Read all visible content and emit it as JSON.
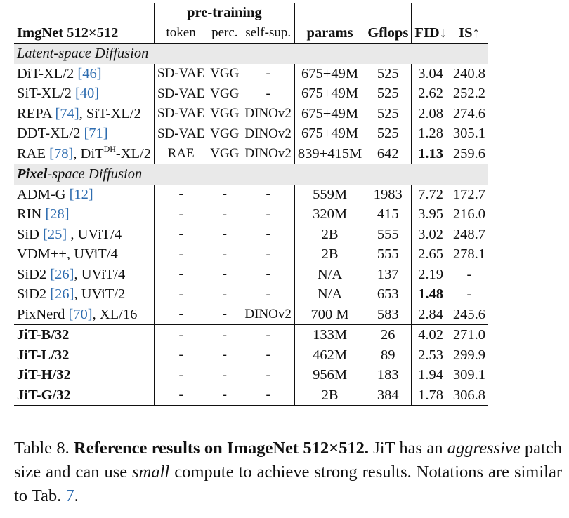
{
  "header": {
    "group": "pre-training",
    "col_dataset": "ImgNet 512×512",
    "col_token": "token",
    "col_perc": "perc.",
    "col_selfsup": "self-sup.",
    "col_params": "params",
    "col_gflops": "Gflops",
    "col_fid": "FID↓",
    "col_is": "IS↑"
  },
  "sections": {
    "latent": "Latent-space Diffusion",
    "pixel_bold": "Pixel",
    "pixel_rest": "-space Diffusion"
  },
  "latent_rows": [
    {
      "name": "DiT-XL/2 ",
      "ref": "[46]",
      "token": "SD-VAE",
      "perc": "VGG",
      "self": "-",
      "params": "675+49M",
      "gflops": "525",
      "fid": "3.04",
      "is": "240.8"
    },
    {
      "name": "SiT-XL/2 ",
      "ref": "[40]",
      "token": "SD-VAE",
      "perc": "VGG",
      "self": "-",
      "params": "675+49M",
      "gflops": "525",
      "fid": "2.62",
      "is": "252.2"
    },
    {
      "name": "REPA ",
      "ref": "[74]",
      "name2": ", SiT-XL/2",
      "token": "SD-VAE",
      "perc": "VGG",
      "self": "DINOv2",
      "params": "675+49M",
      "gflops": "525",
      "fid": "2.08",
      "is": "274.6"
    },
    {
      "name": "DDT-XL/2 ",
      "ref": "[71]",
      "token": "SD-VAE",
      "perc": "VGG",
      "self": "DINOv2",
      "params": "675+49M",
      "gflops": "525",
      "fid": "1.28",
      "is": "305.1"
    },
    {
      "name": "RAE ",
      "ref": "[78]",
      "name2": ", DiT",
      "sup": "DH",
      "name3": "-XL/2",
      "token": "RAE",
      "perc": "VGG",
      "self": "DINOv2",
      "params": "839+415M",
      "gflops": "642",
      "fid": "1.13",
      "is": "259.6"
    }
  ],
  "pixel_rows": [
    {
      "name": "ADM-G ",
      "ref": "[12]",
      "token": "-",
      "perc": "-",
      "self": "-",
      "params": "559M",
      "gflops": "1983",
      "fid": "7.72",
      "is": "172.7"
    },
    {
      "name": "RIN ",
      "ref": "[28]",
      "token": "-",
      "perc": "-",
      "self": "-",
      "params": "320M",
      "gflops": "415",
      "fid": "3.95",
      "is": "216.0"
    },
    {
      "name": "SiD ",
      "ref": "[25]",
      "name2": " , UViT/4",
      "token": "-",
      "perc": "-",
      "self": "-",
      "params": "2B",
      "gflops": "555",
      "fid": "3.02",
      "is": "248.7"
    },
    {
      "name": "VDM++, UViT/4",
      "token": "-",
      "perc": "-",
      "self": "-",
      "params": "2B",
      "gflops": "555",
      "fid": "2.65",
      "is": "278.1"
    },
    {
      "name": "SiD2 ",
      "ref": "[26]",
      "name2": ", UViT/4",
      "token": "-",
      "perc": "-",
      "self": "-",
      "params": "N/A",
      "gflops": "137",
      "fid": "2.19",
      "is": "-"
    },
    {
      "name": "SiD2 ",
      "ref": "[26]",
      "name2": ", UViT/2",
      "token": "-",
      "perc": "-",
      "self": "-",
      "params": "N/A",
      "gflops": "653",
      "fid": "1.48",
      "is": "-"
    },
    {
      "name": "PixNerd ",
      "ref": "[70]",
      "name2": ", XL/16",
      "token": "-",
      "perc": "-",
      "self": "DINOv2",
      "params": "700 M",
      "gflops": "583",
      "fid": "2.84",
      "is": "245.6"
    }
  ],
  "jit_rows": [
    {
      "name": "JiT-B/32",
      "token": "-",
      "perc": "-",
      "self": "-",
      "params": "133M",
      "gflops": "26",
      "fid": "4.02",
      "is": "271.0"
    },
    {
      "name": "JiT-L/32",
      "token": "-",
      "perc": "-",
      "self": "-",
      "params": "462M",
      "gflops": "89",
      "fid": "2.53",
      "is": "299.9"
    },
    {
      "name": "JiT-H/32",
      "token": "-",
      "perc": "-",
      "self": "-",
      "params": "956M",
      "gflops": "183",
      "fid": "1.94",
      "is": "309.1"
    },
    {
      "name": "JiT-G/32",
      "token": "-",
      "perc": "-",
      "self": "-",
      "params": "2B",
      "gflops": "384",
      "fid": "1.78",
      "is": "306.8"
    }
  ],
  "caption": {
    "label": "Table 8.",
    "title": "Reference results on ImageNet 512×512.",
    "t1": " JiT has an ",
    "em1": "aggressive",
    "t2": " patch size and can use ",
    "em2": "small",
    "t3": " compute to achieve strong results. Notations are similar to Tab. ",
    "ref": "7",
    "t4": "."
  }
}
